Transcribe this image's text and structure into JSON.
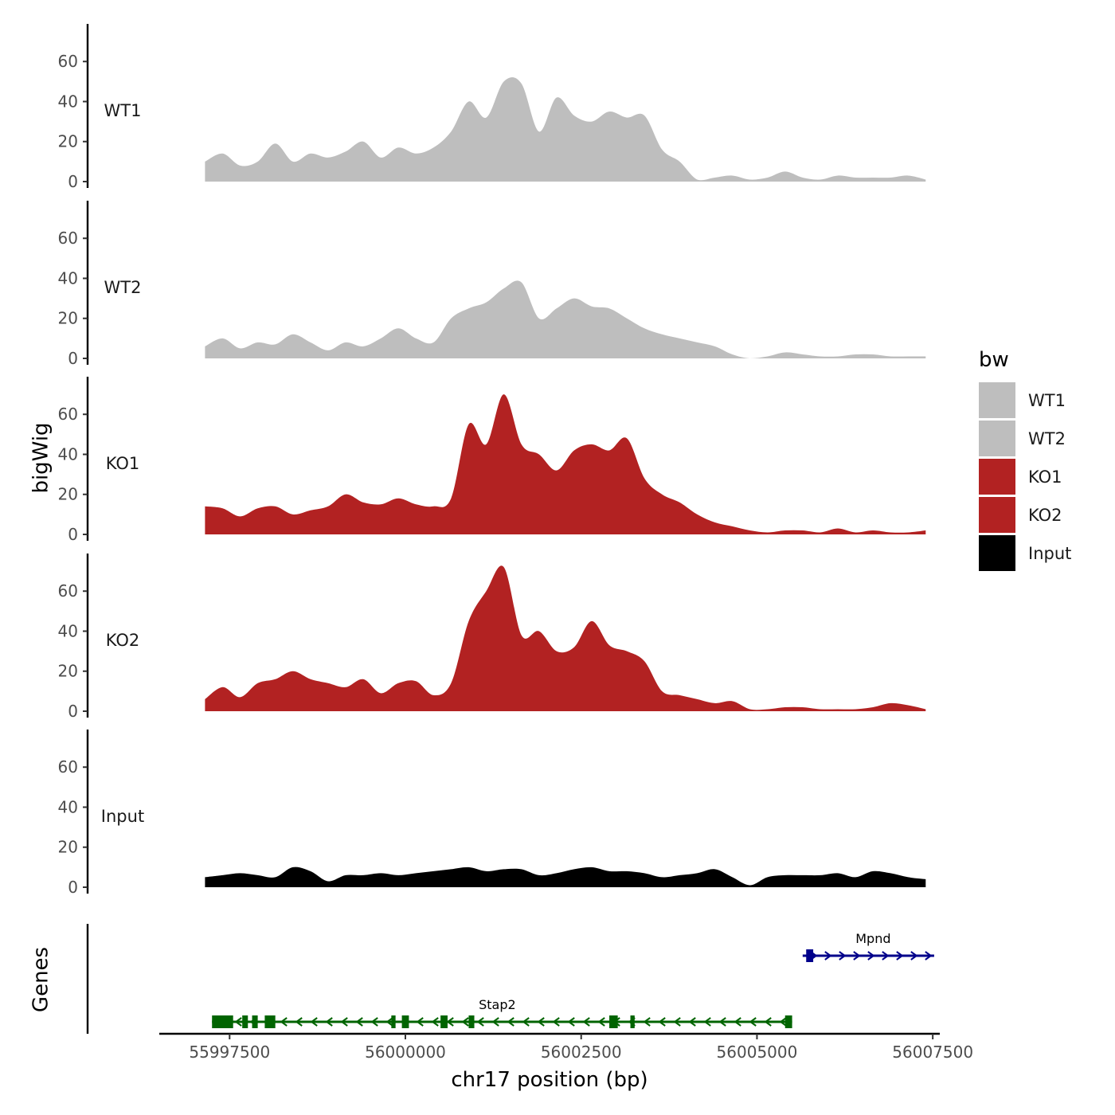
{
  "chart_data": {
    "type": "area",
    "ylabel": "bigWig",
    "xlabel": "chr17 position (bp)",
    "x_range": [
      55996500,
      56007600
    ],
    "ylim": [
      0,
      78
    ],
    "y_ticks": [
      "0",
      "20",
      "40",
      "60"
    ],
    "y_tick_values": [
      0,
      20,
      40,
      60
    ],
    "x_ticks": [
      "55997500",
      "56000000",
      "56002500",
      "56005000",
      "56007500"
    ],
    "x_tick_values": [
      55997500,
      56000000,
      56002500,
      56005000,
      56007500
    ],
    "x_sample": [
      55997150,
      55997400,
      55997650,
      55997900,
      55998150,
      55998400,
      55998650,
      55998900,
      55999150,
      55999400,
      55999650,
      55999900,
      56000150,
      56000400,
      56000650,
      56000900,
      56001150,
      56001400,
      56001650,
      56001900,
      56002150,
      56002400,
      56002650,
      56002900,
      56003150,
      56003400,
      56003650,
      56003900,
      56004150,
      56004400,
      56004650,
      56004900,
      56005150,
      56005400,
      56005650,
      56005900,
      56006150,
      56006400,
      56006650,
      56006900,
      56007150,
      56007400
    ],
    "series": [
      {
        "name": "WT1",
        "color": "#bebebe",
        "values": [
          10,
          14,
          8,
          10,
          19,
          10,
          14,
          12,
          15,
          20,
          12,
          17,
          14,
          17,
          25,
          40,
          32,
          50,
          49,
          25,
          42,
          33,
          30,
          35,
          32,
          33,
          16,
          10,
          1,
          2,
          3,
          1,
          2,
          5,
          2,
          1,
          3,
          2,
          2,
          2,
          3,
          1
        ]
      },
      {
        "name": "WT2",
        "color": "#bebebe",
        "values": [
          6,
          10,
          5,
          8,
          7,
          12,
          8,
          4,
          8,
          6,
          10,
          15,
          10,
          8,
          20,
          25,
          28,
          35,
          38,
          20,
          25,
          30,
          26,
          25,
          20,
          15,
          12,
          10,
          8,
          6,
          2,
          0,
          1,
          3,
          2,
          1,
          1,
          2,
          2,
          1,
          1,
          1
        ]
      },
      {
        "name": "KO1",
        "color": "#b22222",
        "values": [
          14,
          13,
          9,
          13,
          14,
          10,
          12,
          14,
          20,
          16,
          15,
          18,
          15,
          14,
          18,
          55,
          45,
          70,
          45,
          40,
          32,
          42,
          45,
          42,
          48,
          28,
          20,
          16,
          10,
          6,
          4,
          2,
          1,
          2,
          2,
          1,
          3,
          1,
          2,
          1,
          1,
          2
        ]
      },
      {
        "name": "KO2",
        "color": "#b22222",
        "values": [
          6,
          12,
          7,
          14,
          16,
          20,
          16,
          14,
          12,
          16,
          9,
          14,
          15,
          8,
          14,
          45,
          60,
          72,
          38,
          40,
          30,
          32,
          45,
          33,
          30,
          25,
          10,
          8,
          6,
          4,
          5,
          1,
          1,
          2,
          2,
          1,
          1,
          1,
          2,
          4,
          3,
          1
        ]
      },
      {
        "name": "Input",
        "color": "#000000",
        "values": [
          5,
          6,
          7,
          6,
          5,
          10,
          8,
          3,
          6,
          6,
          7,
          6,
          7,
          8,
          9,
          10,
          8,
          9,
          9,
          6,
          7,
          9,
          10,
          8,
          8,
          7,
          5,
          6,
          7,
          9,
          5,
          1,
          5,
          6,
          6,
          6,
          7,
          5,
          8,
          7,
          5,
          4
        ]
      }
    ],
    "legend": {
      "title": "bw",
      "entries": [
        {
          "label": "WT1",
          "color": "#bebebe"
        },
        {
          "label": "WT2",
          "color": "#bebebe"
        },
        {
          "label": "KO1",
          "color": "#b22222"
        },
        {
          "label": "KO2",
          "color": "#b22222"
        },
        {
          "label": "Input",
          "color": "#000000"
        }
      ]
    },
    "genes_track": {
      "label": "Genes",
      "genes": [
        {
          "name": "Stap2",
          "color": "#006400",
          "strand": "-",
          "start": 55997250,
          "end": 56005500,
          "exons": [
            [
              55997250,
              55997550
            ],
            [
              55997680,
              55997760
            ],
            [
              55997820,
              55997900
            ],
            [
              55998000,
              55998150
            ],
            [
              55999800,
              55999860
            ],
            [
              55999950,
              56000050
            ],
            [
              56000500,
              56000600
            ],
            [
              56000900,
              56000980
            ],
            [
              56002900,
              56003020
            ],
            [
              56003200,
              56003260
            ],
            [
              56005400,
              56005500
            ]
          ]
        },
        {
          "name": "Mpnd",
          "color": "#00008b",
          "strand": "+",
          "start": 56005650,
          "end": 56007520,
          "exons": [
            [
              56005700,
              56005800
            ]
          ]
        }
      ]
    }
  }
}
